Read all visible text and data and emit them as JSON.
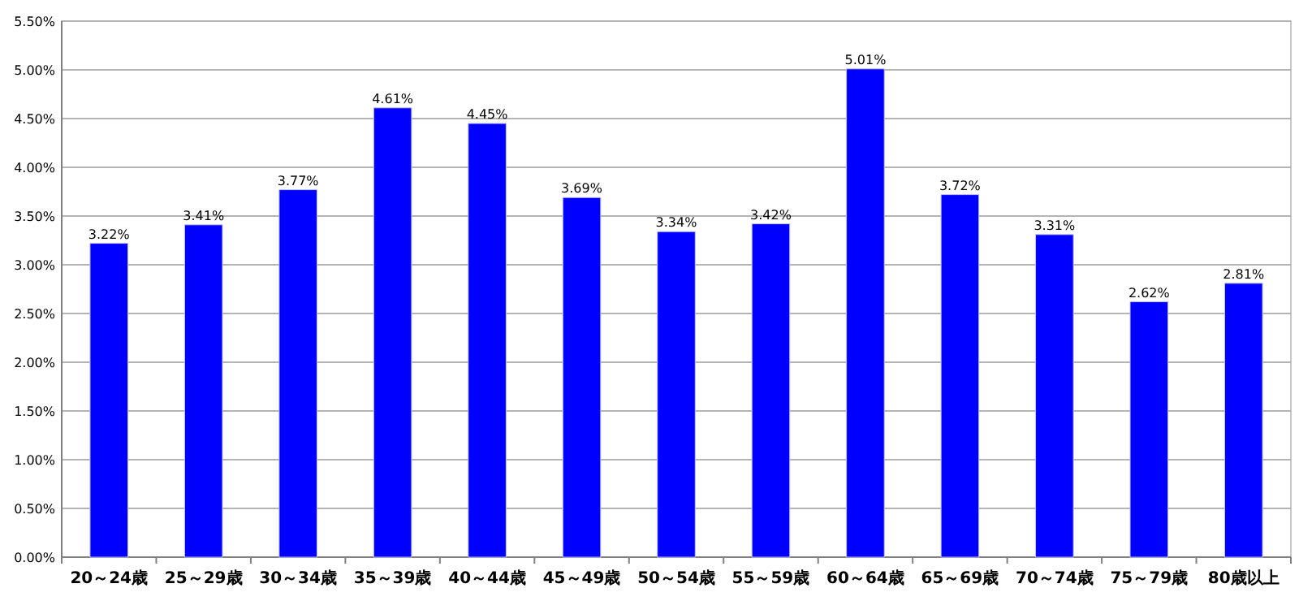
{
  "chart_data": {
    "type": "bar",
    "categories": [
      "20～24歳",
      "25～29歳",
      "30～34歳",
      "35～39歳",
      "40～44歳",
      "45～49歳",
      "50～54歳",
      "55～59歳",
      "60～64歳",
      "65～69歳",
      "70～74歳",
      "75～79歳",
      "80歳以上"
    ],
    "values": [
      3.22,
      3.41,
      3.77,
      4.61,
      4.45,
      3.69,
      3.34,
      3.42,
      5.01,
      3.72,
      3.31,
      2.62,
      2.81
    ],
    "value_labels": [
      "3.22%",
      "3.41%",
      "3.77%",
      "4.61%",
      "4.45%",
      "3.69%",
      "3.34%",
      "3.42%",
      "5.01%",
      "3.72%",
      "3.31%",
      "2.62%",
      "2.81%"
    ],
    "color": "#0000ff",
    "ylim": [
      0,
      5.5
    ],
    "yticks": [
      {
        "value": 0,
        "label": "0.00%"
      },
      {
        "value": 0.5,
        "label": "0.50%"
      },
      {
        "value": 1,
        "label": "1.00%"
      },
      {
        "value": 1.5,
        "label": "1.50%"
      },
      {
        "value": 2,
        "label": "2.00%"
      },
      {
        "value": 2.5,
        "label": "2.50%"
      },
      {
        "value": 3,
        "label": "3.00%"
      },
      {
        "value": 3.5,
        "label": "3.50%"
      },
      {
        "value": 4,
        "label": "4.00%"
      },
      {
        "value": 4.5,
        "label": "4.50%"
      },
      {
        "value": 5,
        "label": "5.00%"
      },
      {
        "value": 5.5,
        "label": "5.50%"
      }
    ],
    "grid": "y"
  }
}
